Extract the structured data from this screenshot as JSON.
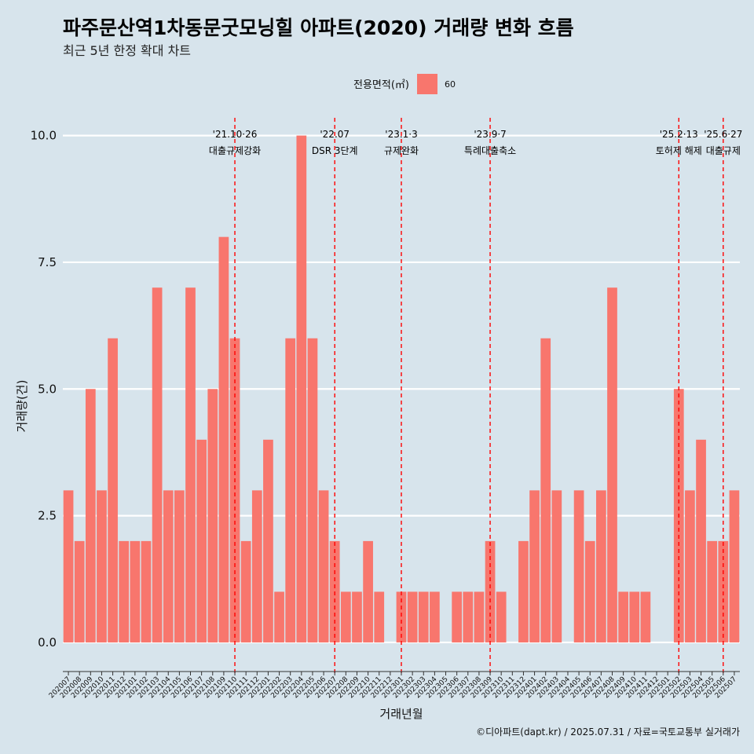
{
  "chart_data": {
    "type": "bar",
    "title": "파주문산역1차동문굿모닝힐 아파트(2020) 거래량 변화 흐름",
    "subtitle": "최근 5년 한정 확대 차트",
    "xlabel": "거래년월",
    "ylabel": "거래량(건)",
    "caption": "©디아파트(dapt.kr) / 2025.07.31 / 자료=국토교통부 실거래가",
    "legend": {
      "title": "전용면적(㎡)",
      "position": "top",
      "entries": [
        {
          "label": "60",
          "color": "#f8766d"
        }
      ]
    },
    "ylim": [
      -0.45,
      10.35
    ],
    "yticks": [
      0.0,
      2.5,
      5.0,
      7.5,
      10.0
    ],
    "ytick_labels": [
      "0.0",
      "2.5",
      "5.0",
      "7.5",
      "10.0"
    ],
    "grid": true,
    "bar_color": "#f8766d",
    "categories": [
      "202007",
      "202008",
      "202009",
      "202010",
      "202011",
      "202012",
      "202101",
      "202102",
      "202103",
      "202104",
      "202105",
      "202106",
      "202107",
      "202108",
      "202109",
      "202110",
      "202111",
      "202112",
      "202201",
      "202202",
      "202203",
      "202204",
      "202205",
      "202206",
      "202207",
      "202208",
      "202209",
      "202210",
      "202211",
      "202212",
      "202301",
      "202302",
      "202303",
      "202304",
      "202305",
      "202306",
      "202307",
      "202308",
      "202309",
      "202310",
      "202311",
      "202312",
      "202401",
      "202402",
      "202403",
      "202404",
      "202405",
      "202406",
      "202407",
      "202408",
      "202409",
      "202410",
      "202411",
      "202412",
      "202501",
      "202502",
      "202503",
      "202504",
      "202505",
      "202506",
      "202507"
    ],
    "series": [
      {
        "values": [
          3,
          2,
          5,
          3,
          6,
          2,
          2,
          2,
          7,
          3,
          3,
          7,
          4,
          5,
          8,
          6,
          2,
          3,
          4,
          1,
          6,
          10,
          6,
          3,
          2,
          1,
          1,
          2,
          1,
          0,
          1,
          1,
          1,
          1,
          0,
          1,
          1,
          1,
          2,
          1,
          0,
          2,
          3,
          6,
          3,
          0,
          3,
          2,
          3,
          7,
          1,
          1,
          1,
          0,
          0,
          5,
          3,
          4,
          2,
          2,
          3
        ]
      }
    ],
    "annotations": [
      {
        "category": "202110",
        "date": "'21.10·26",
        "label": "대출규제강화",
        "color": "#ff0000"
      },
      {
        "category": "202207",
        "date": "'22.07",
        "label": "DSR 3단계",
        "color": "#ff0000"
      },
      {
        "category": "202301",
        "date": "'23.1·3",
        "label": "규제완화",
        "color": "#ff0000"
      },
      {
        "category": "202309",
        "date": "'23.9·7",
        "label": "특례대출축소",
        "color": "#ff0000"
      },
      {
        "category": "202502",
        "date": "'25.2·13",
        "label": "토허제 해제",
        "color": "#ff0000"
      },
      {
        "category": "202506",
        "date": "'25.6·27",
        "label": "대출규제",
        "color": "#ff0000"
      }
    ]
  }
}
